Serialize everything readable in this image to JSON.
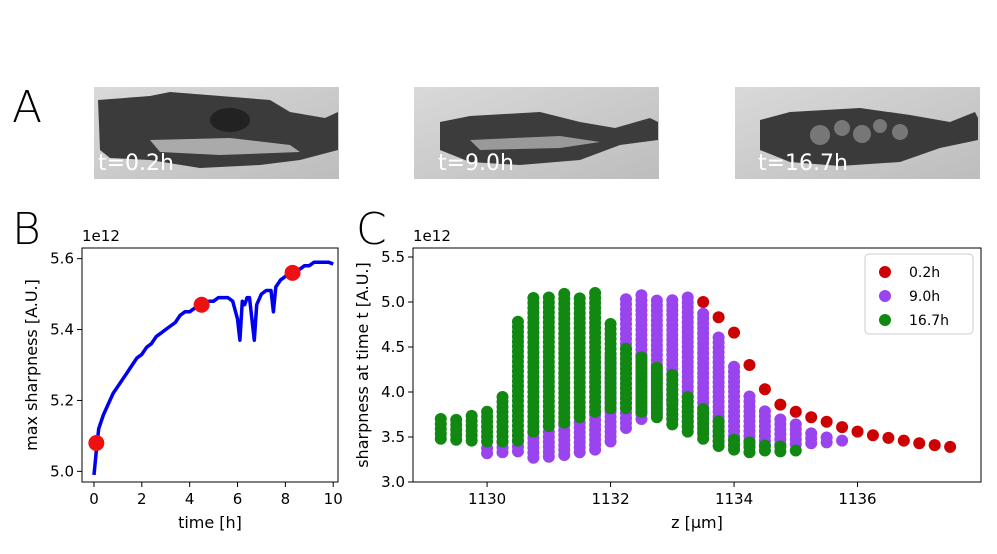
{
  "panels": {
    "A": {
      "letter": "A",
      "timestamps": [
        "t=0.2h",
        "t=9.0h",
        "t=16.7h"
      ]
    },
    "B": {
      "letter": "B"
    },
    "C": {
      "letter": "C"
    }
  },
  "chart_data": [
    {
      "type": "line",
      "panel": "B",
      "xlabel": "time [h]",
      "ylabel": "max sharpness [A.U.]",
      "y_offset_label": "1e12",
      "xlim": [
        -0.5,
        10.2
      ],
      "ylim": [
        4.97,
        5.63
      ],
      "xticks": [
        0,
        2,
        4,
        6,
        8,
        10
      ],
      "yticks": [
        5.0,
        5.2,
        5.4,
        5.6
      ],
      "series": [
        {
          "color": "#0000ee",
          "x": [
            0.0,
            0.1,
            0.2,
            0.4,
            0.6,
            0.8,
            1.0,
            1.2,
            1.4,
            1.6,
            1.8,
            2.0,
            2.2,
            2.4,
            2.6,
            2.8,
            3.0,
            3.2,
            3.4,
            3.6,
            3.8,
            4.0,
            4.2,
            4.4,
            4.6,
            4.8,
            5.0,
            5.2,
            5.4,
            5.6,
            5.8,
            6.0,
            6.1,
            6.2,
            6.3,
            6.4,
            6.5,
            6.6,
            6.7,
            6.8,
            7.0,
            7.2,
            7.4,
            7.5,
            7.6,
            7.7,
            7.8,
            8.0,
            8.2,
            8.4,
            8.6,
            8.8,
            9.0,
            9.2,
            9.4,
            9.6,
            9.8,
            10.0
          ],
          "y": [
            4.99,
            5.06,
            5.12,
            5.16,
            5.19,
            5.22,
            5.24,
            5.26,
            5.28,
            5.3,
            5.32,
            5.33,
            5.35,
            5.36,
            5.38,
            5.39,
            5.4,
            5.41,
            5.42,
            5.44,
            5.45,
            5.45,
            5.46,
            5.46,
            5.47,
            5.48,
            5.48,
            5.49,
            5.49,
            5.49,
            5.48,
            5.43,
            5.37,
            5.48,
            5.47,
            5.49,
            5.49,
            5.43,
            5.37,
            5.47,
            5.5,
            5.51,
            5.51,
            5.45,
            5.52,
            5.53,
            5.54,
            5.55,
            5.56,
            5.57,
            5.57,
            5.58,
            5.58,
            5.59,
            5.59,
            5.59,
            5.59,
            5.585
          ]
        }
      ],
      "markers": [
        {
          "x": 0.1,
          "y": 5.08,
          "color": "#ee1111"
        },
        {
          "x": 4.5,
          "y": 5.47,
          "color": "#ee1111"
        },
        {
          "x": 8.3,
          "y": 5.56,
          "color": "#ee1111"
        }
      ]
    },
    {
      "type": "scatter",
      "panel": "C",
      "xlabel": "z [μm]",
      "ylabel": "sharpness at time t [A.U.]",
      "y_offset_label": "1e12",
      "xlim": [
        1128.8,
        1138.0
      ],
      "ylim": [
        3.0,
        5.6
      ],
      "xticks": [
        1130,
        1132,
        1134,
        1136
      ],
      "yticks": [
        3.0,
        3.5,
        4.0,
        4.5,
        5.0,
        5.5
      ],
      "legend_position": "top-right",
      "series": [
        {
          "name": "0.2h",
          "color": "#cc0000",
          "points": [
            [
              1133.5,
              5.0
            ],
            [
              1133.75,
              4.83
            ],
            [
              1134.0,
              4.66
            ],
            [
              1134.25,
              4.3
            ],
            [
              1134.5,
              4.03
            ],
            [
              1134.75,
              3.86
            ],
            [
              1135.0,
              3.78
            ],
            [
              1135.25,
              3.72
            ],
            [
              1135.5,
              3.67
            ],
            [
              1135.75,
              3.61
            ],
            [
              1136.0,
              3.56
            ],
            [
              1136.25,
              3.52
            ],
            [
              1136.5,
              3.49
            ],
            [
              1136.75,
              3.46
            ],
            [
              1137.0,
              3.43
            ],
            [
              1137.25,
              3.41
            ],
            [
              1137.5,
              3.39
            ],
            [
              1133.0,
              3.9
            ]
          ]
        },
        {
          "name": "9.0h",
          "color": "#9944ee",
          "stacks": [
            {
              "x": 1130.0,
              "ymin": 3.32,
              "ymax": 3.42
            },
            {
              "x": 1130.25,
              "ymin": 3.33,
              "ymax": 3.46
            },
            {
              "x": 1130.5,
              "ymin": 3.34,
              "ymax": 3.5
            },
            {
              "x": 1130.75,
              "ymin": 3.27,
              "ymax": 3.56
            },
            {
              "x": 1131.0,
              "ymin": 3.28,
              "ymax": 3.6
            },
            {
              "x": 1131.25,
              "ymin": 3.3,
              "ymax": 3.64
            },
            {
              "x": 1131.5,
              "ymin": 3.33,
              "ymax": 3.7
            },
            {
              "x": 1131.75,
              "ymin": 3.36,
              "ymax": 3.78
            },
            {
              "x": 1132.0,
              "ymin": 3.45,
              "ymax": 4.4
            },
            {
              "x": 1132.25,
              "ymin": 3.6,
              "ymax": 5.08
            },
            {
              "x": 1132.5,
              "ymin": 3.7,
              "ymax": 5.08
            },
            {
              "x": 1132.75,
              "ymin": 3.75,
              "ymax": 5.06
            },
            {
              "x": 1133.0,
              "ymin": 3.7,
              "ymax": 5.06
            },
            {
              "x": 1133.25,
              "ymin": 3.62,
              "ymax": 5.06
            },
            {
              "x": 1133.5,
              "ymin": 3.55,
              "ymax": 4.9
            },
            {
              "x": 1133.75,
              "ymin": 3.45,
              "ymax": 4.62
            },
            {
              "x": 1134.0,
              "ymin": 3.4,
              "ymax": 4.3
            },
            {
              "x": 1134.25,
              "ymin": 3.4,
              "ymax": 3.95
            },
            {
              "x": 1134.5,
              "ymin": 3.4,
              "ymax": 3.8
            },
            {
              "x": 1134.75,
              "ymin": 3.42,
              "ymax": 3.72
            },
            {
              "x": 1135.0,
              "ymin": 3.42,
              "ymax": 3.64
            },
            {
              "x": 1135.25,
              "ymin": 3.43,
              "ymax": 3.58
            },
            {
              "x": 1135.5,
              "ymin": 3.44,
              "ymax": 3.54
            },
            {
              "x": 1135.75,
              "ymin": 3.46,
              "ymax": 3.5
            }
          ]
        },
        {
          "name": "16.7h",
          "color": "#118811",
          "stacks": [
            {
              "x": 1129.25,
              "ymin": 3.48,
              "ymax": 3.72
            },
            {
              "x": 1129.5,
              "ymin": 3.47,
              "ymax": 3.74
            },
            {
              "x": 1129.75,
              "ymin": 3.46,
              "ymax": 3.78
            },
            {
              "x": 1130.0,
              "ymin": 3.45,
              "ymax": 3.82
            },
            {
              "x": 1130.25,
              "ymin": 3.45,
              "ymax": 3.95
            },
            {
              "x": 1130.5,
              "ymin": 3.46,
              "ymax": 4.83
            },
            {
              "x": 1130.75,
              "ymin": 3.56,
              "ymax": 5.05
            },
            {
              "x": 1131.0,
              "ymin": 3.62,
              "ymax": 5.07
            },
            {
              "x": 1131.25,
              "ymin": 3.66,
              "ymax": 5.09
            },
            {
              "x": 1131.5,
              "ymin": 3.72,
              "ymax": 5.09
            },
            {
              "x": 1131.75,
              "ymin": 3.78,
              "ymax": 5.1
            },
            {
              "x": 1132.0,
              "ymin": 3.82,
              "ymax": 4.8
            },
            {
              "x": 1132.25,
              "ymin": 3.82,
              "ymax": 4.5
            },
            {
              "x": 1132.5,
              "ymin": 3.78,
              "ymax": 4.4
            },
            {
              "x": 1132.75,
              "ymin": 3.72,
              "ymax": 4.3
            },
            {
              "x": 1133.0,
              "ymin": 3.64,
              "ymax": 4.2
            },
            {
              "x": 1133.25,
              "ymin": 3.56,
              "ymax": 3.95
            },
            {
              "x": 1133.5,
              "ymin": 3.48,
              "ymax": 3.85
            },
            {
              "x": 1133.75,
              "ymin": 3.4,
              "ymax": 3.7
            },
            {
              "x": 1134.0,
              "ymin": 3.36,
              "ymax": 3.5
            },
            {
              "x": 1134.25,
              "ymin": 3.33,
              "ymax": 3.45
            },
            {
              "x": 1134.5,
              "ymin": 3.35,
              "ymax": 3.42
            },
            {
              "x": 1134.75,
              "ymin": 3.34,
              "ymax": 3.4
            },
            {
              "x": 1135.0,
              "ymin": 3.35,
              "ymax": 3.37
            }
          ]
        }
      ]
    }
  ]
}
